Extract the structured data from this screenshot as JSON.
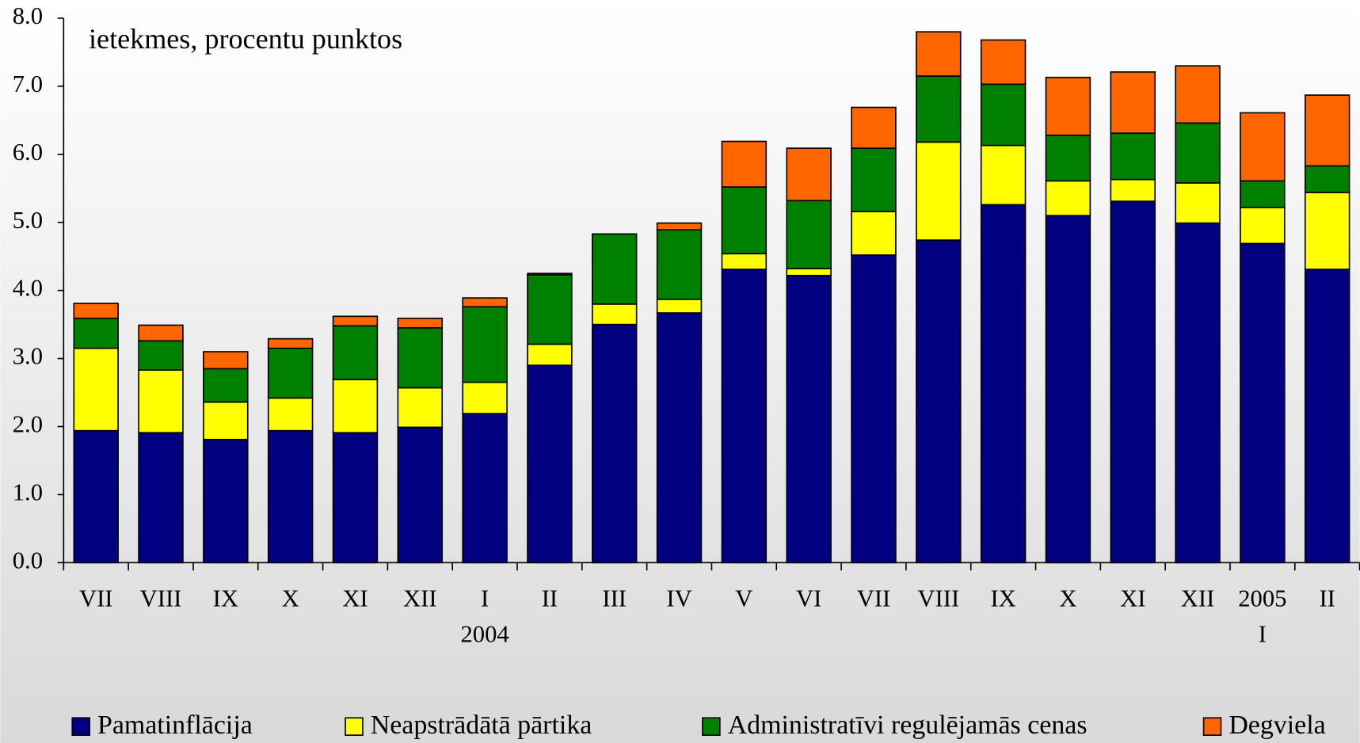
{
  "chart_data": {
    "type": "stacked-bar",
    "annotation": "ietekmes, procentu punktos",
    "categories": [
      "VII",
      "VIII",
      "IX",
      "X",
      "XI",
      "XII",
      "I\n2004",
      "II",
      "III",
      "IV",
      "V",
      "VI",
      "VII",
      "VIII",
      "IX",
      "X",
      "XI",
      "XII",
      "2005\nI",
      "II"
    ],
    "series": [
      {
        "name": "Pamatinflācija",
        "color": "#000080",
        "values": [
          1.94,
          1.91,
          1.81,
          1.94,
          1.91,
          1.99,
          2.19,
          2.9,
          3.5,
          3.67,
          4.31,
          4.22,
          4.52,
          4.74,
          5.26,
          5.1,
          5.31,
          4.99,
          4.69,
          4.31
        ]
      },
      {
        "name": "Neapstrādātā pārtika",
        "color": "#ffff00",
        "values": [
          1.21,
          0.92,
          0.55,
          0.48,
          0.78,
          0.58,
          0.46,
          0.31,
          0.3,
          0.2,
          0.23,
          0.1,
          0.64,
          1.44,
          0.87,
          0.51,
          0.32,
          0.59,
          0.53,
          1.13
        ]
      },
      {
        "name": "Administratīvi regulējamās cenas",
        "color": "#008000",
        "values": [
          0.44,
          0.43,
          0.49,
          0.73,
          0.79,
          0.88,
          1.11,
          1.02,
          1.03,
          1.02,
          0.98,
          1.0,
          0.93,
          0.97,
          0.9,
          0.67,
          0.68,
          0.88,
          0.39,
          0.39
        ]
      },
      {
        "name": "Degviela",
        "color": "#ff6600",
        "values": [
          0.22,
          0.23,
          0.25,
          0.14,
          0.14,
          0.14,
          0.13,
          0.02,
          0,
          0.1,
          0.67,
          0.77,
          0.6,
          0.65,
          0.65,
          0.85,
          0.9,
          0.84,
          1.0,
          1.04
        ]
      }
    ],
    "ylim": [
      0,
      8
    ],
    "yticks": [
      {
        "value": 0,
        "label": "0.0"
      },
      {
        "value": 1,
        "label": "1.0"
      },
      {
        "value": 2,
        "label": "2.0"
      },
      {
        "value": 3,
        "label": "3.0"
      },
      {
        "value": 4,
        "label": "4.0"
      },
      {
        "value": 5,
        "label": "5.0"
      },
      {
        "value": 6,
        "label": "6.0"
      },
      {
        "value": 7,
        "label": "7.0"
      },
      {
        "value": 8,
        "label": "8.0"
      }
    ],
    "grid": false,
    "legend": "bottom"
  }
}
